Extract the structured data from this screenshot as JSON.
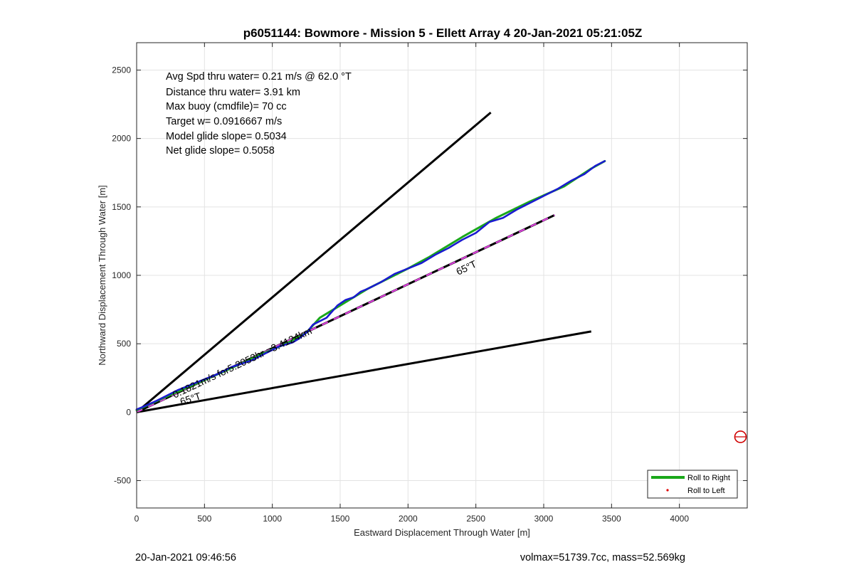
{
  "chart_data": {
    "type": "line",
    "title": "p6051144: Bowmore - Mission 5 - Ellett Array 4 20-Jan-2021 05:21:05Z",
    "xlabel": "Eastward Displacement Through Water [m]",
    "ylabel": "Northward Displacement Through Water [m]",
    "xlim": [
      0,
      4500
    ],
    "ylim": [
      -700,
      2700
    ],
    "xticks": [
      0,
      500,
      1000,
      1500,
      2000,
      2500,
      3000,
      3500,
      4000
    ],
    "yticks": [
      -500,
      0,
      500,
      1000,
      1500,
      2000,
      2500
    ],
    "grid": true,
    "legend_position": "bottom-right",
    "annotations": [
      "Avg Spd thru water=  0.21 m/s @  62.0 °T",
      "Distance thru water=  3.91 km",
      "Max buoy (cmdfile)= 70 cc",
      "Target w= 0.0916667 m/s",
      "Model glide slope= 0.5034",
      "Net glide slope= 0.5058"
    ],
    "line_labels": {
      "heading_upper": "65°T",
      "heading_lower": "65°T",
      "drift": "0.1821m/s for5.2053hr =3.4124km"
    },
    "reference_lines": [
      {
        "name": "upper bound",
        "x": [
          0,
          2610
        ],
        "y": [
          0,
          2190
        ],
        "color": "#000000"
      },
      {
        "name": "lower bound",
        "x": [
          0,
          3350
        ],
        "y": [
          0,
          590
        ],
        "color": "#000000"
      },
      {
        "name": "65°T heading",
        "x": [
          0,
          3080
        ],
        "y": [
          0,
          1440
        ],
        "color": "#000000",
        "overlay_color": "#e040e0"
      }
    ],
    "series": [
      {
        "name": "Roll to Right",
        "color": "#1aa81a",
        "x": [
          0,
          200,
          420,
          650,
          900,
          1100,
          1250,
          1350,
          1500,
          1700,
          2000,
          2150,
          2400,
          2650,
          2900,
          3150,
          3350,
          3450
        ],
        "y": [
          15,
          105,
          200,
          300,
          415,
          500,
          580,
          690,
          780,
          900,
          1050,
          1130,
          1280,
          1420,
          1540,
          1650,
          1780,
          1835
        ]
      },
      {
        "name": "Roll to Left",
        "color": "#e00000",
        "x": [],
        "y": []
      },
      {
        "name": "track",
        "color": "#1a1ad0",
        "x": [
          0,
          50,
          150,
          300,
          450,
          600,
          700,
          850,
          950,
          1050,
          1150,
          1200,
          1260,
          1300,
          1400,
          1480,
          1540,
          1600,
          1650,
          1700,
          1800,
          1900,
          2000,
          2100,
          2200,
          2300,
          2400,
          2500,
          2600,
          2700,
          2800,
          2900,
          3000,
          3100,
          3200,
          3300,
          3380,
          3450
        ],
        "y": [
          20,
          40,
          85,
          160,
          220,
          280,
          330,
          380,
          430,
          480,
          510,
          540,
          590,
          640,
          690,
          780,
          820,
          840,
          880,
          900,
          950,
          1010,
          1050,
          1090,
          1150,
          1200,
          1260,
          1310,
          1390,
          1420,
          1480,
          1530,
          1580,
          1630,
          1690,
          1740,
          1800,
          1835
        ]
      }
    ],
    "marker": {
      "name": "current position",
      "x": 4450,
      "y": -180,
      "color": "#d00000"
    }
  },
  "legend": {
    "roll_right": "Roll to Right",
    "roll_left": "Roll to Left"
  },
  "footer": {
    "left": "20-Jan-2021 09:46:56",
    "right": "volmax=51739.7cc, mass=52.569kg"
  }
}
